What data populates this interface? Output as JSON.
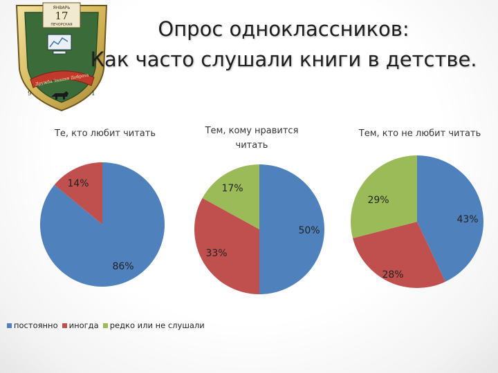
{
  "header": {
    "title_line1": "Опрос одноклассников:",
    "title_line2": "Как часто слушали книги в детстве."
  },
  "colors": {
    "blue": "#4f81bd",
    "red": "#c0504d",
    "green": "#9bbb59"
  },
  "logo": {
    "icon": "school-emblem-shield-icon",
    "text_top": "ЯНВАРЬ",
    "number": "17",
    "text_mid": "ПЕЧОРСКАЯ",
    "ribbon": "Дружба Знания Доброта",
    "corner_left": "9",
    "corner_right": "1"
  },
  "legend": [
    {
      "label": "постоянно",
      "color": "#4f81bd"
    },
    {
      "label": "иногда",
      "color": "#c0504d"
    },
    {
      "label": "редко или не слушали",
      "color": "#9bbb59"
    }
  ],
  "chart_data": [
    {
      "type": "pie",
      "title": "Те, кто любит читать",
      "categories": [
        "постоянно",
        "иногда"
      ],
      "values": [
        86,
        14
      ],
      "labels": [
        "86%",
        "14%"
      ]
    },
    {
      "type": "pie",
      "title": "Тем, кому нравится читать",
      "title_lines": [
        "Тем, кому нравится",
        "читать"
      ],
      "categories": [
        "постоянно",
        "иногда",
        "редко или не слушали"
      ],
      "values": [
        50,
        33,
        17
      ],
      "labels": [
        "50%",
        "33%",
        "17%"
      ]
    },
    {
      "type": "pie",
      "title": "Тем, кто не любит читать",
      "categories": [
        "постоянно",
        "иногда",
        "редко или не слушали"
      ],
      "values": [
        43,
        28,
        29
      ],
      "labels": [
        "43%",
        "28%",
        "29%"
      ]
    }
  ]
}
